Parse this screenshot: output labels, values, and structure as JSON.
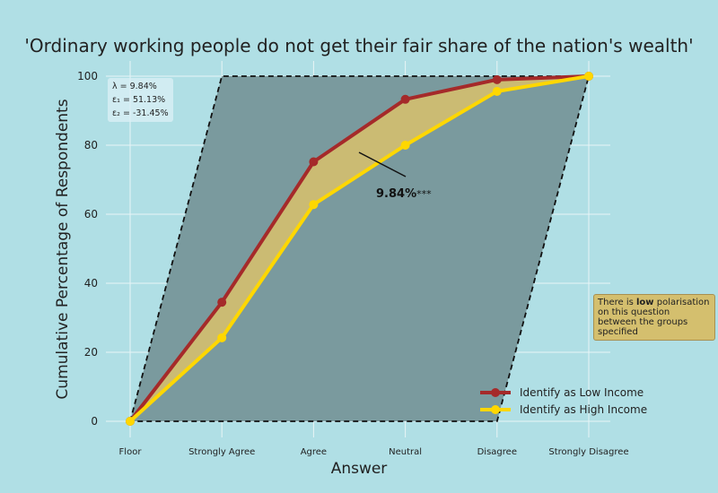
{
  "chart_data": {
    "type": "line",
    "title": "'Ordinary working people do not get their fair share of the nation's wealth'",
    "xlabel": "Answer",
    "ylabel": "Cumulative Percentage of Respondents",
    "categories": [
      "Floor",
      "Strongly Agree",
      "Agree",
      "Neutral",
      "Disagree",
      "Strongly Disagree"
    ],
    "yticks": [
      0,
      20,
      40,
      60,
      80,
      100
    ],
    "ylim": [
      0,
      100
    ],
    "grid": true,
    "legend_position": "bottom-right",
    "series": [
      {
        "name": "Identify as Low Income",
        "color": "#a52a2a",
        "values": [
          0,
          34.5,
          75.2,
          93.3,
          99.0,
          100
        ]
      },
      {
        "name": "Identify as High Income",
        "color": "#ffd700",
        "values": [
          0,
          24.2,
          62.8,
          80.0,
          95.6,
          100
        ]
      }
    ],
    "fill_color": "#d4bf6e",
    "parallelogram_color": "#7a9a9e",
    "annotation": {
      "text": "9.84%",
      "suffix": "***"
    },
    "stats": {
      "lambda": "λ = 9.84%",
      "eps1": "ε₁ = 51.13%",
      "eps2": "ε₂ = -31.45%"
    },
    "note": {
      "pre": "There is ",
      "bold": "low",
      "post": " polarisation on this question between the groups specified"
    }
  }
}
